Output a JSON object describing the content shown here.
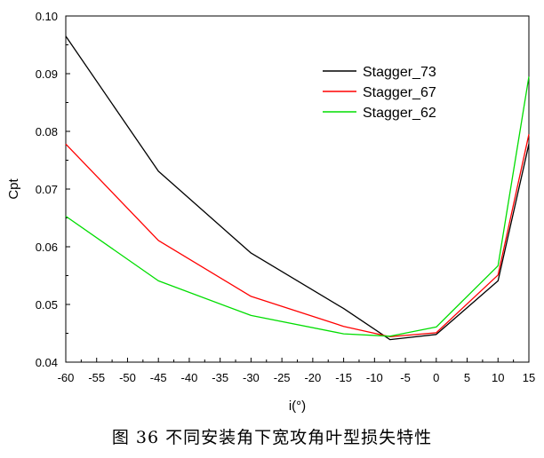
{
  "caption": "图 36 不同安装角下宽攻角叶型损失特性",
  "chart_data": {
    "type": "line",
    "xlabel": "i(°)",
    "ylabel": "Cpt",
    "xlim": [
      -60,
      15
    ],
    "ylim": [
      0.04,
      0.1
    ],
    "x_ticks": [
      "-60",
      "-55",
      "-50",
      "-45",
      "-40",
      "-35",
      "-30",
      "-25",
      "-20",
      "-15",
      "-10",
      "-5",
      "0",
      "5",
      "10",
      "15"
    ],
    "y_ticks": [
      "0.04",
      "0.05",
      "0.06",
      "0.07",
      "0.08",
      "0.09",
      "0.10"
    ],
    "grid": false,
    "legend_position": "top-right",
    "series": [
      {
        "name": "Stagger_73",
        "color": "#000000",
        "points": [
          [
            -60,
            0.0965
          ],
          [
            -45,
            0.0731
          ],
          [
            -30,
            0.0589
          ],
          [
            -15,
            0.0493
          ],
          [
            -7.5,
            0.0439
          ],
          [
            0,
            0.0448
          ],
          [
            10,
            0.0541
          ],
          [
            15,
            0.0778
          ]
        ]
      },
      {
        "name": "Stagger_67",
        "color": "#ff0000",
        "points": [
          [
            -60,
            0.0778
          ],
          [
            -45,
            0.0611
          ],
          [
            -30,
            0.0514
          ],
          [
            -15,
            0.0462
          ],
          [
            -7.5,
            0.0444
          ],
          [
            0,
            0.0451
          ],
          [
            10,
            0.0551
          ],
          [
            15,
            0.0795
          ]
        ]
      },
      {
        "name": "Stagger_62",
        "color": "#00dd00",
        "points": [
          [
            -60,
            0.0653
          ],
          [
            -45,
            0.0541
          ],
          [
            -30,
            0.0481
          ],
          [
            -15,
            0.0449
          ],
          [
            -7.5,
            0.0445
          ],
          [
            0,
            0.0461
          ],
          [
            10,
            0.0567
          ],
          [
            15,
            0.0895
          ]
        ]
      }
    ]
  }
}
